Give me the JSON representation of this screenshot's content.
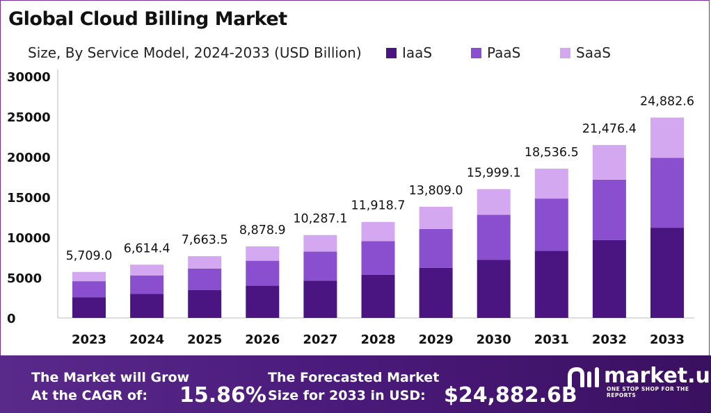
{
  "header": {
    "title": "Global Cloud Billing Market",
    "subtitle": "Size, By Service Model, 2024-2033 (USD Billion)"
  },
  "colors": {
    "iaas": "#4a1580",
    "paas": "#8a4fcf",
    "saas": "#d4a8f0",
    "banner": "#4a1a7a",
    "frame": "#7a2c9e"
  },
  "chart_data": {
    "type": "bar",
    "stacked": true,
    "categories": [
      "2023",
      "2024",
      "2025",
      "2026",
      "2027",
      "2028",
      "2029",
      "2030",
      "2031",
      "2032",
      "2033"
    ],
    "series": [
      {
        "name": "IaaS",
        "values": [
          2570,
          2980,
          3450,
          4000,
          4630,
          5370,
          6220,
          7200,
          8340,
          9660,
          11200
        ]
      },
      {
        "name": "PaaS",
        "values": [
          1990,
          2300,
          2680,
          3100,
          3600,
          4170,
          4830,
          5600,
          6480,
          7500,
          8690
        ]
      },
      {
        "name": "SaaS",
        "values": [
          1149,
          1334.4,
          1533.5,
          1778.9,
          2057.1,
          2378.7,
          2759,
          3199.1,
          3716.5,
          4316.4,
          4992.6
        ]
      }
    ],
    "totals_labels": [
      "5,709.0",
      "6,614.4",
      "7,663.5",
      "8,878.9",
      "10,287.1",
      "11,918.7",
      "13,809.0",
      "15,999.1",
      "18,536.5",
      "21,476.4",
      "24,882.6"
    ],
    "ylim": [
      0,
      30000
    ],
    "yticks": [
      0,
      5000,
      10000,
      15000,
      20000,
      25000,
      30000
    ],
    "legend_position": "top-right",
    "grid": false
  },
  "banner": {
    "cagr_line1": "The Market will Grow",
    "cagr_line2": "At the CAGR of:",
    "cagr_value": "15.86%",
    "forecast_line1": "The Forecasted Market",
    "forecast_line2": "Size for 2033 in USD:",
    "forecast_value": "$24,882.6B",
    "brand": "market.us",
    "tagline": "ONE STOP SHOP FOR THE REPORTS"
  }
}
